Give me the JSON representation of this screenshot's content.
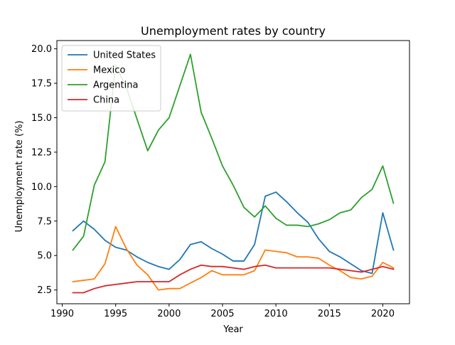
{
  "chart_data": {
    "type": "line",
    "title": "Unemployment rates by country",
    "xlabel": "Year",
    "ylabel": "Unemployment rate (%)",
    "xlim": [
      1989.5,
      2022.5
    ],
    "ylim": [
      1.5,
      20.6
    ],
    "xticks": [
      1990,
      1995,
      2000,
      2005,
      2010,
      2015,
      2020
    ],
    "yticks": [
      2.5,
      5.0,
      7.5,
      10.0,
      12.5,
      15.0,
      17.5,
      20.0
    ],
    "xtick_labels": [
      "1990",
      "1995",
      "2000",
      "2005",
      "2010",
      "2015",
      "2020"
    ],
    "ytick_labels": [
      "2.5",
      "5.0",
      "7.5",
      "10.0",
      "12.5",
      "15.0",
      "17.5",
      "20.0"
    ],
    "grid": false,
    "legend_position": "top-left",
    "x": [
      1991,
      1992,
      1993,
      1994,
      1995,
      1996,
      1997,
      1998,
      1999,
      2000,
      2001,
      2002,
      2003,
      2004,
      2005,
      2006,
      2007,
      2008,
      2009,
      2010,
      2011,
      2012,
      2013,
      2014,
      2015,
      2016,
      2017,
      2018,
      2019,
      2020,
      2021
    ],
    "series": [
      {
        "name": "United States",
        "color": "#1f77b4",
        "values": [
          6.8,
          7.5,
          6.9,
          6.1,
          5.6,
          5.4,
          4.9,
          4.5,
          4.2,
          4.0,
          4.7,
          5.8,
          6.0,
          5.5,
          5.1,
          4.6,
          4.6,
          5.8,
          9.3,
          9.6,
          8.9,
          8.1,
          7.4,
          6.2,
          5.3,
          4.9,
          4.4,
          3.9,
          3.7,
          8.1,
          5.4
        ]
      },
      {
        "name": "Mexico",
        "color": "#ff7f0e",
        "values": [
          3.1,
          3.2,
          3.3,
          4.4,
          7.1,
          5.5,
          4.3,
          3.6,
          2.5,
          2.6,
          2.6,
          3.0,
          3.4,
          3.9,
          3.6,
          3.6,
          3.6,
          3.9,
          5.4,
          5.3,
          5.2,
          4.9,
          4.9,
          4.8,
          4.3,
          3.9,
          3.4,
          3.3,
          3.5,
          4.5,
          4.1
        ]
      },
      {
        "name": "Argentina",
        "color": "#2ca02c",
        "values": [
          5.4,
          6.4,
          10.1,
          11.8,
          18.8,
          17.2,
          14.9,
          12.6,
          14.1,
          15.0,
          17.3,
          19.6,
          15.4,
          13.5,
          11.5,
          10.1,
          8.5,
          7.8,
          8.6,
          7.7,
          7.2,
          7.2,
          7.1,
          7.3,
          7.6,
          8.1,
          8.3,
          9.2,
          9.8,
          11.5,
          8.8
        ]
      },
      {
        "name": "China",
        "color": "#d62728",
        "values": [
          2.3,
          2.3,
          2.6,
          2.8,
          2.9,
          3.0,
          3.1,
          3.1,
          3.1,
          3.1,
          3.6,
          4.0,
          4.3,
          4.2,
          4.2,
          4.1,
          4.0,
          4.2,
          4.3,
          4.1,
          4.1,
          4.1,
          4.1,
          4.1,
          4.1,
          4.0,
          3.9,
          3.8,
          4.0,
          4.2,
          4.0
        ]
      }
    ]
  }
}
